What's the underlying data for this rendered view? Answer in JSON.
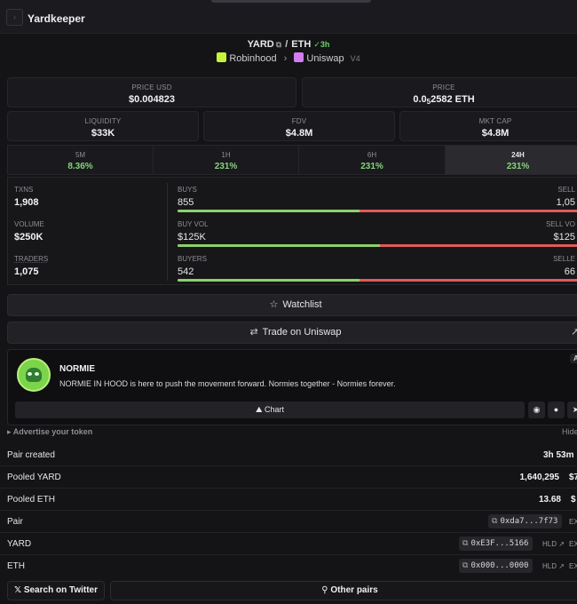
{
  "header": {
    "title": "Yardkeeper"
  },
  "pair": {
    "base": "YARD",
    "quote": "ETH",
    "age": "3h",
    "chain": "Robinhood",
    "dex": "Uniswap",
    "dex_version": "V4"
  },
  "price_usd": {
    "label": "PRICE USD",
    "value": "$0.004823"
  },
  "price_native": {
    "label": "PRICE",
    "prefix": "0.0",
    "sub": "5",
    "suffix": "2582 ETH"
  },
  "liquidity": {
    "label": "LIQUIDITY",
    "value": "$33K"
  },
  "fdv": {
    "label": "FDV",
    "value": "$4.8M"
  },
  "mkt_cap": {
    "label": "MKT CAP",
    "value": "$4.8M"
  },
  "timeframes": [
    {
      "label": "5M",
      "value": "8.36%"
    },
    {
      "label": "1H",
      "value": "231%"
    },
    {
      "label": "6H",
      "value": "231%"
    },
    {
      "label": "24H",
      "value": "231%"
    }
  ],
  "stats": {
    "txns": {
      "label": "TXNS",
      "value": "1,908"
    },
    "volume": {
      "label": "VOLUME",
      "value": "$250K"
    },
    "traders": {
      "label": "TRADERS",
      "value": "1,075"
    },
    "buys": {
      "label": "BUYS",
      "value": "855",
      "right_label": "SELL",
      "right_value": "1,05",
      "fraction": 0.45
    },
    "buy_vol": {
      "label": "BUY VOL",
      "value": "$125K",
      "right_label": "SELL VO",
      "right_value": "$125",
      "fraction": 0.5
    },
    "buyers": {
      "label": "BUYERS",
      "value": "542",
      "right_label": "SELLE",
      "right_value": "66",
      "fraction": 0.45
    }
  },
  "buttons": {
    "watchlist": "Watchlist",
    "trade": "Trade on Uniswap"
  },
  "token": {
    "name": "NORMIE",
    "description": "NORMIE IN HOOD is here to push the movement forward. Normies together - Normies forever.",
    "badge": "A",
    "chart_label": "Chart"
  },
  "advertise": {
    "label": "Advertise your token",
    "hide": "Hide"
  },
  "info": {
    "pair_created": {
      "label": "Pair created",
      "value": "3h 53m"
    },
    "pooled_yard": {
      "label": "Pooled YARD",
      "value": "1,640,295",
      "extra": "$7"
    },
    "pooled_eth": {
      "label": "Pooled ETH",
      "value": "13.68",
      "extra": "$"
    },
    "pair": {
      "label": "Pair",
      "address": "0xda7...7f73",
      "exp": "EX"
    },
    "yard": {
      "label": "YARD",
      "address": "0xE3F...5166",
      "hld": "HLD",
      "exp": "EX"
    },
    "eth": {
      "label": "ETH",
      "address": "0x000...0000",
      "hld": "HLD",
      "exp": "EX"
    }
  },
  "bottom": {
    "twitter": "Search on Twitter",
    "other_pairs": "Other pairs"
  },
  "colors": {
    "positive": "#86d37a",
    "buy_bar": "#8cd16b",
    "sell_bar": "#e05a5a"
  }
}
